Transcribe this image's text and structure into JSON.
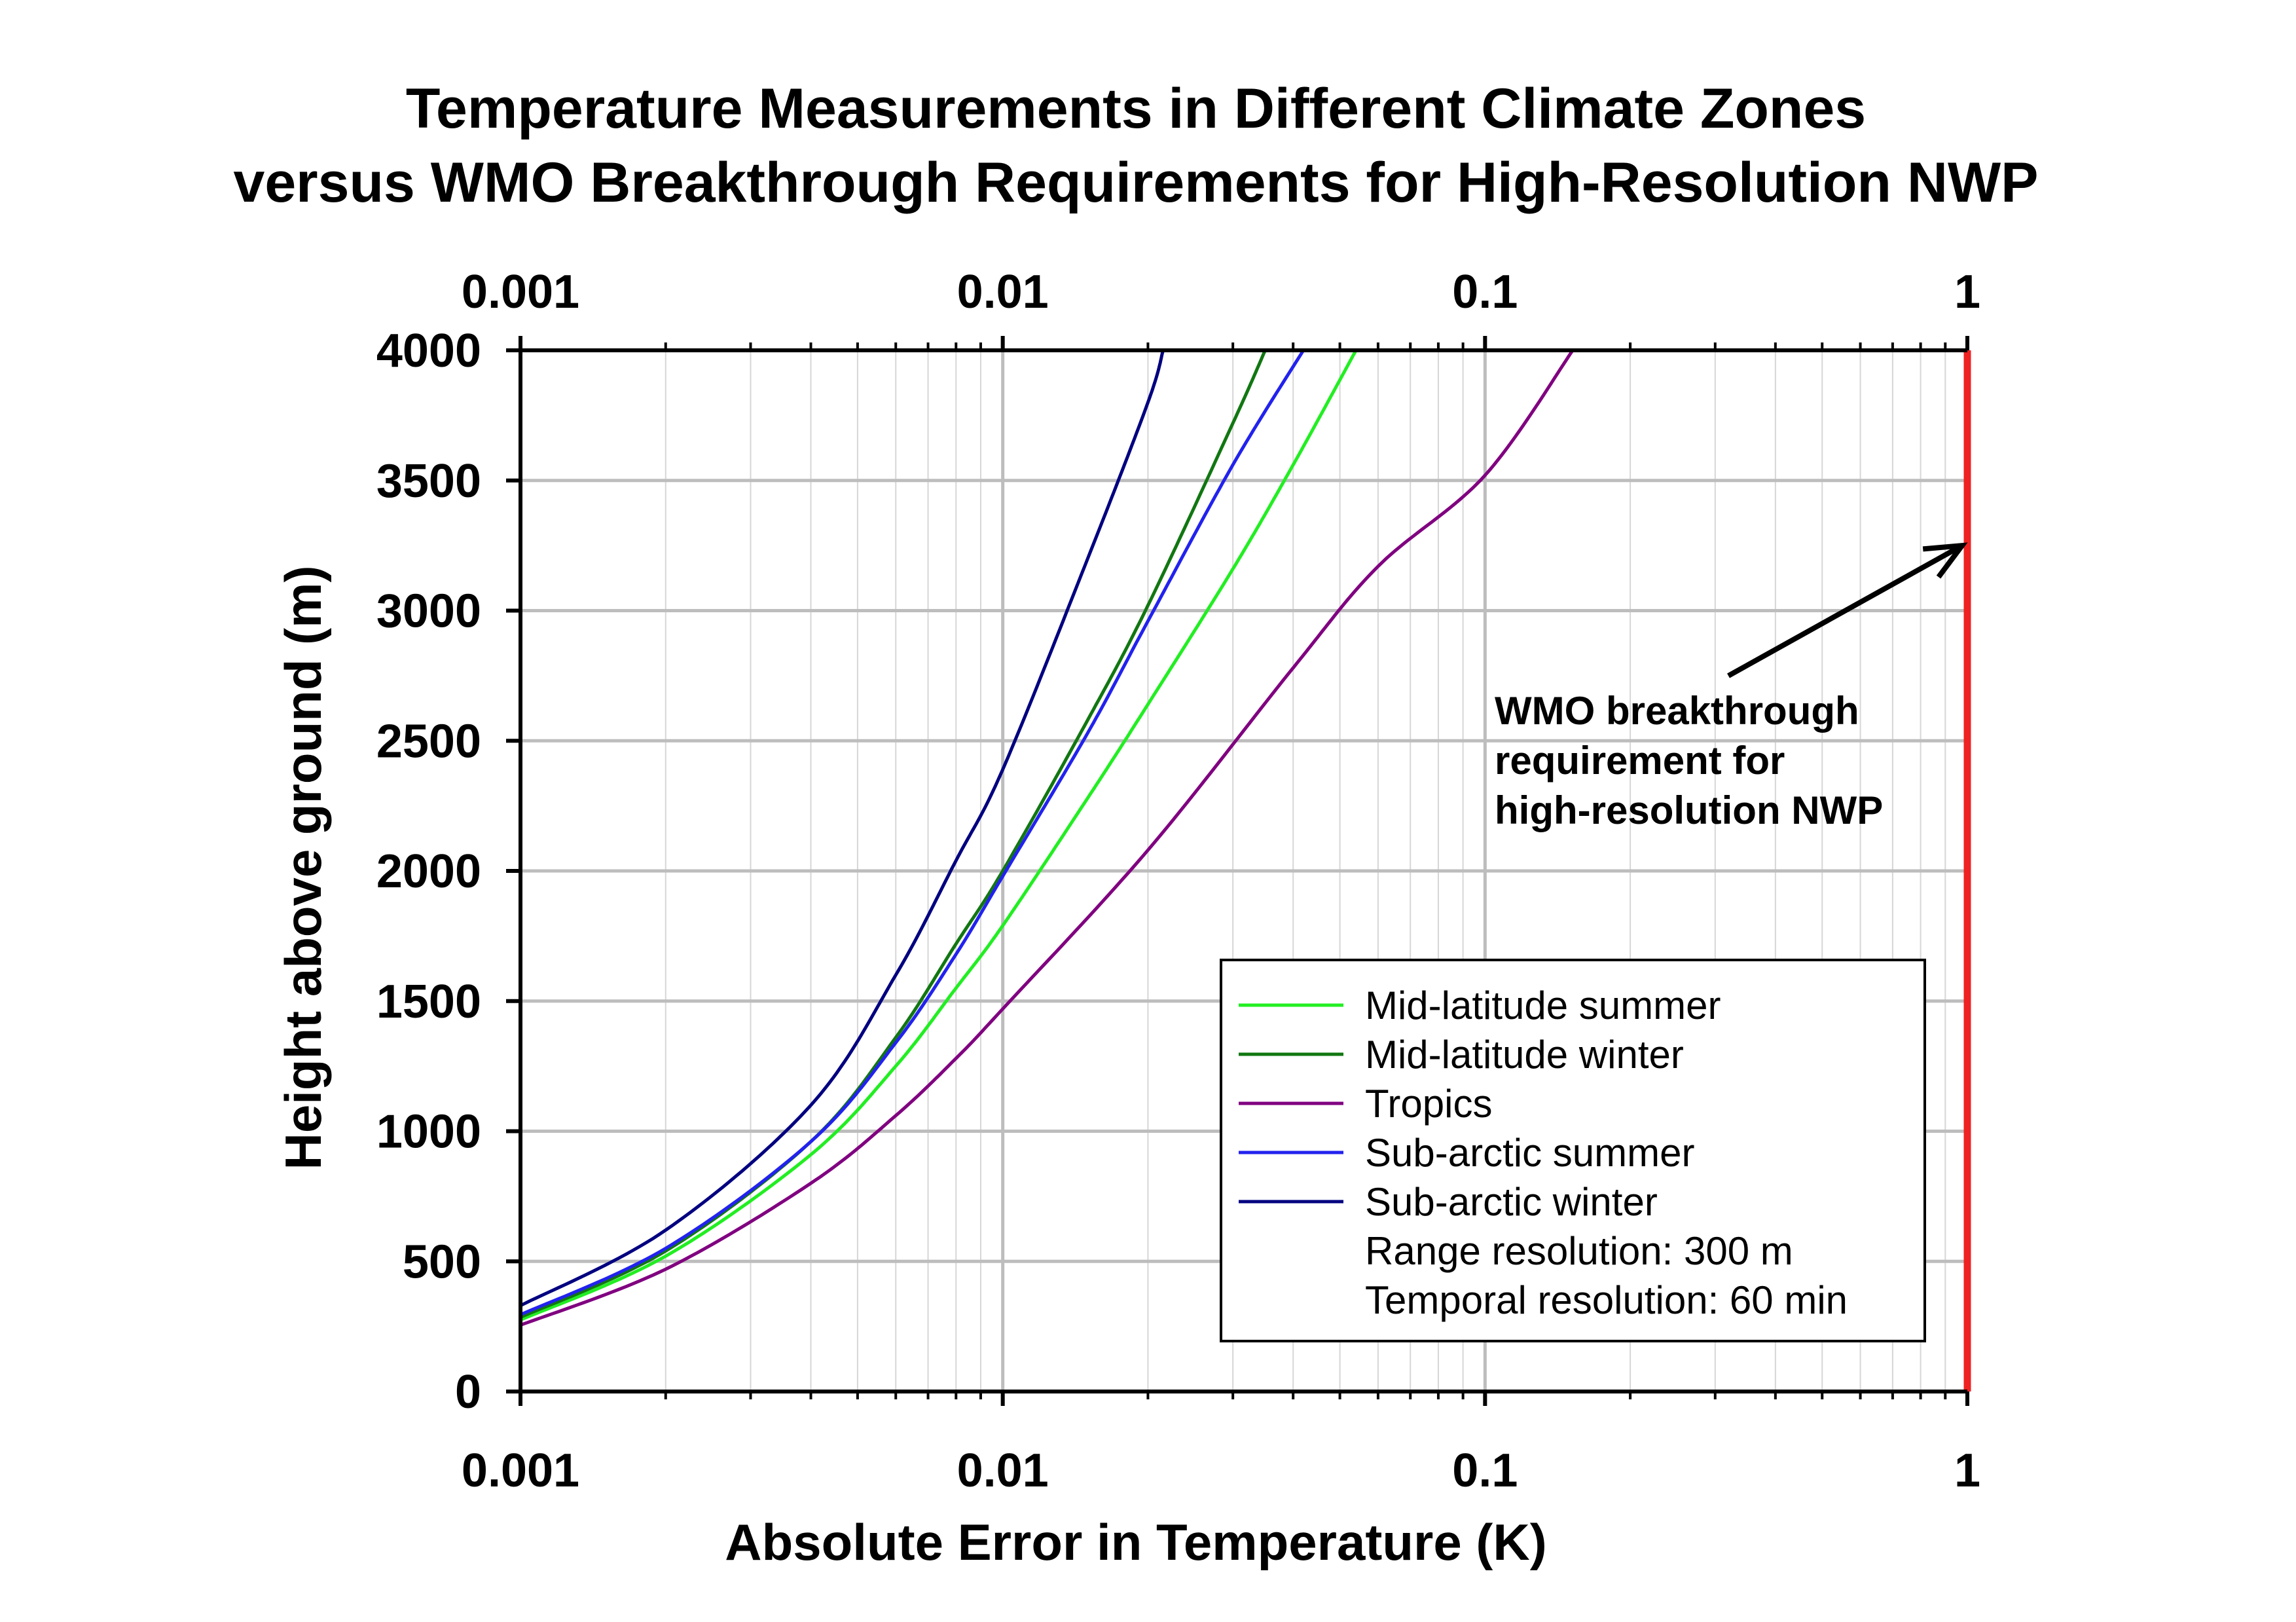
{
  "chart_data": {
    "type": "line",
    "title": "Temperature Measurements in Different Climate Zones",
    "subtitle": "versus WMO Breakthrough Requirements for High-Resolution NWP",
    "xlabel": "Absolute Error in Temperature (K)",
    "ylabel": "Height above ground (m)",
    "xscale": "log",
    "xlim": [
      0.001,
      1
    ],
    "ylim": [
      0,
      4000
    ],
    "x_ticks": [
      "0.001",
      "0.01",
      "0.1",
      "1"
    ],
    "y_ticks": [
      "0",
      "500",
      "1000",
      "1500",
      "2000",
      "2500",
      "3000",
      "3500",
      "4000"
    ],
    "grid": true,
    "legend_position": "bottom-right",
    "legend_notes": [
      "Range resolution: 300 m",
      "Temporal resolution: 60 min"
    ],
    "series": [
      {
        "name": "Mid-latitude summer",
        "color": "#22ee22",
        "points": [
          [
            0.001,
            275
          ],
          [
            0.002,
            520
          ],
          [
            0.004,
            910
          ],
          [
            0.006,
            1250
          ],
          [
            0.008,
            1550
          ],
          [
            0.01,
            1790
          ],
          [
            0.015,
            2280
          ],
          [
            0.02,
            2640
          ],
          [
            0.03,
            3160
          ],
          [
            0.04,
            3560
          ],
          [
            0.054,
            4000
          ]
        ]
      },
      {
        "name": "Mid-latitude winter",
        "color": "#117711",
        "points": [
          [
            0.001,
            285
          ],
          [
            0.002,
            540
          ],
          [
            0.004,
            960
          ],
          [
            0.006,
            1360
          ],
          [
            0.008,
            1720
          ],
          [
            0.01,
            2000
          ],
          [
            0.015,
            2580
          ],
          [
            0.02,
            3020
          ],
          [
            0.03,
            3720
          ],
          [
            0.035,
            4000
          ]
        ]
      },
      {
        "name": "Tropics",
        "color": "#800080",
        "points": [
          [
            0.001,
            255
          ],
          [
            0.002,
            470
          ],
          [
            0.004,
            800
          ],
          [
            0.006,
            1060
          ],
          [
            0.008,
            1280
          ],
          [
            0.01,
            1470
          ],
          [
            0.02,
            2080
          ],
          [
            0.04,
            2780
          ],
          [
            0.06,
            3170
          ],
          [
            0.1,
            3520
          ],
          [
            0.152,
            4000
          ]
        ]
      },
      {
        "name": "Sub-arctic summer",
        "color": "#2222ee",
        "points": [
          [
            0.001,
            295
          ],
          [
            0.002,
            550
          ],
          [
            0.004,
            960
          ],
          [
            0.006,
            1340
          ],
          [
            0.008,
            1680
          ],
          [
            0.01,
            1980
          ],
          [
            0.015,
            2530
          ],
          [
            0.02,
            2960
          ],
          [
            0.03,
            3560
          ],
          [
            0.042,
            4000
          ]
        ]
      },
      {
        "name": "Sub-arctic winter",
        "color": "#000080",
        "points": [
          [
            0.001,
            330
          ],
          [
            0.002,
            620
          ],
          [
            0.004,
            1100
          ],
          [
            0.006,
            1600
          ],
          [
            0.008,
            2040
          ],
          [
            0.01,
            2390
          ],
          [
            0.015,
            3200
          ],
          [
            0.02,
            3800
          ],
          [
            0.0215,
            4000
          ]
        ]
      }
    ],
    "reference_line": {
      "name": "WMO breakthrough requirement for high-resolution NWP",
      "x": 1,
      "color": "#ee2222"
    },
    "annotations": [
      {
        "lines": [
          "WMO breakthrough",
          "requirement for",
          "high-resolution NWP"
        ],
        "arrow_target": [
          1,
          3250
        ]
      }
    ]
  }
}
